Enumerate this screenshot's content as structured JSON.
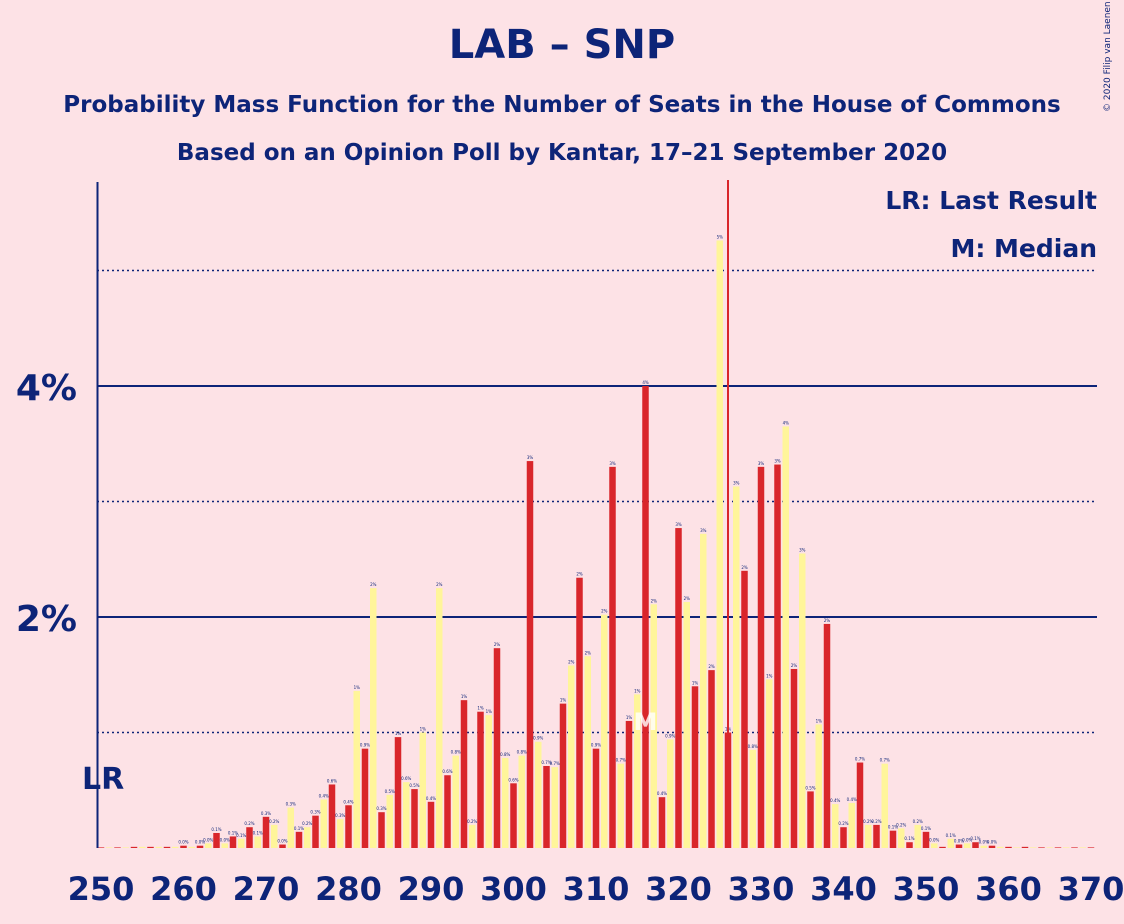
{
  "title": "LAB – SNP",
  "subtitle1": "Probability Mass Function for the Number of Seats in the House of Commons",
  "subtitle2": "Based on an Opinion Poll by Kantar, 17–21 September 2020",
  "copyright": "© 2020 Filip van Laenen",
  "legend": {
    "lr": "LR: Last Result",
    "m": "M: Median"
  },
  "lr_marker_label": "LR",
  "colors": {
    "red": "#D9262B",
    "yellow": "#FFF59A",
    "navy": "#0D2478",
    "background": "#FDE2E6"
  },
  "chart_data": {
    "type": "bar",
    "title": "LAB – SNP",
    "x_range": [
      250,
      370
    ],
    "y_range": [
      0,
      5.75
    ],
    "y_unit": "%",
    "x_ticks": [
      250,
      260,
      270,
      280,
      290,
      300,
      310,
      320,
      330,
      340,
      350,
      360,
      370
    ],
    "y_ticks": [
      {
        "value": 1,
        "label": "",
        "style": "dotted"
      },
      {
        "value": 2,
        "label": "2%",
        "style": "solid"
      },
      {
        "value": 3,
        "label": "",
        "style": "dotted"
      },
      {
        "value": 4,
        "label": "4%",
        "style": "solid"
      },
      {
        "value": 5,
        "label": "",
        "style": "dotted"
      }
    ],
    "last_result_seat": 250,
    "median_seat": 326,
    "median_label": "M",
    "series": [
      {
        "color": "red",
        "points": [
          [
            250,
            0.0
          ],
          [
            252,
            0.0
          ],
          [
            254,
            0.01
          ],
          [
            256,
            0.01
          ],
          [
            258,
            0.01
          ],
          [
            260,
            0.02
          ],
          [
            262,
            0.02
          ],
          [
            264,
            0.13
          ],
          [
            266,
            0.1
          ],
          [
            268,
            0.18
          ],
          [
            270,
            0.27
          ],
          [
            272,
            0.03
          ],
          [
            274,
            0.14
          ],
          [
            276,
            0.28
          ],
          [
            278,
            0.55
          ],
          [
            280,
            0.37
          ],
          [
            282,
            0.86
          ],
          [
            284,
            0.31
          ],
          [
            286,
            0.96
          ],
          [
            288,
            0.51
          ],
          [
            290,
            0.4
          ],
          [
            292,
            0.63
          ],
          [
            294,
            1.28
          ],
          [
            296,
            1.18
          ],
          [
            298,
            1.73
          ],
          [
            300,
            0.56
          ],
          [
            302,
            3.35
          ],
          [
            304,
            0.71
          ],
          [
            306,
            1.25
          ],
          [
            308,
            2.34
          ],
          [
            310,
            0.86
          ],
          [
            312,
            3.3
          ],
          [
            314,
            1.1
          ],
          [
            316,
            4.0
          ],
          [
            318,
            0.44
          ],
          [
            320,
            2.77
          ],
          [
            322,
            1.4
          ],
          [
            324,
            1.54
          ],
          [
            326,
            1.0
          ],
          [
            328,
            2.4
          ],
          [
            330,
            3.3
          ],
          [
            332,
            3.32
          ],
          [
            334,
            1.55
          ],
          [
            336,
            0.49
          ],
          [
            338,
            1.94
          ],
          [
            340,
            0.18
          ],
          [
            342,
            0.74
          ],
          [
            344,
            0.2
          ],
          [
            346,
            0.15
          ],
          [
            348,
            0.05
          ],
          [
            350,
            0.14
          ],
          [
            352,
            0.01
          ],
          [
            354,
            0.03
          ],
          [
            356,
            0.05
          ],
          [
            358,
            0.02
          ],
          [
            360,
            0.01
          ],
          [
            362,
            0.01
          ],
          [
            364,
            0.0
          ],
          [
            366,
            0.0
          ],
          [
            368,
            0.0
          ],
          [
            370,
            0.0
          ]
        ]
      },
      {
        "color": "yellow",
        "points": [
          [
            251,
            0.0
          ],
          [
            253,
            0.0
          ],
          [
            255,
            0.01
          ],
          [
            257,
            0.01
          ],
          [
            259,
            0.01
          ],
          [
            261,
            0.01
          ],
          [
            263,
            0.04
          ],
          [
            265,
            0.04
          ],
          [
            267,
            0.08
          ],
          [
            269,
            0.1
          ],
          [
            271,
            0.2
          ],
          [
            273,
            0.35
          ],
          [
            275,
            0.18
          ],
          [
            277,
            0.42
          ],
          [
            279,
            0.25
          ],
          [
            281,
            1.36
          ],
          [
            283,
            2.25
          ],
          [
            285,
            0.46
          ],
          [
            287,
            0.57
          ],
          [
            289,
            1.0
          ],
          [
            291,
            2.25
          ],
          [
            293,
            0.8
          ],
          [
            295,
            0.2
          ],
          [
            297,
            1.15
          ],
          [
            299,
            0.78
          ],
          [
            301,
            0.8
          ],
          [
            303,
            0.92
          ],
          [
            305,
            0.7
          ],
          [
            307,
            1.58
          ],
          [
            309,
            1.66
          ],
          [
            311,
            2.02
          ],
          [
            313,
            0.73
          ],
          [
            315,
            1.33
          ],
          [
            317,
            2.11
          ],
          [
            319,
            0.94
          ],
          [
            321,
            2.13
          ],
          [
            323,
            2.72
          ],
          [
            325,
            5.26
          ],
          [
            327,
            3.13
          ],
          [
            329,
            0.85
          ],
          [
            331,
            1.46
          ],
          [
            333,
            3.65
          ],
          [
            335,
            2.55
          ],
          [
            337,
            1.07
          ],
          [
            339,
            0.38
          ],
          [
            341,
            0.39
          ],
          [
            343,
            0.2
          ],
          [
            345,
            0.73
          ],
          [
            347,
            0.17
          ],
          [
            349,
            0.2
          ],
          [
            351,
            0.04
          ],
          [
            353,
            0.08
          ],
          [
            355,
            0.04
          ],
          [
            357,
            0.02
          ],
          [
            359,
            0.01
          ],
          [
            361,
            0.0
          ],
          [
            363,
            0.0
          ],
          [
            365,
            0.0
          ],
          [
            367,
            0.0
          ],
          [
            369,
            0.0
          ]
        ]
      }
    ]
  }
}
